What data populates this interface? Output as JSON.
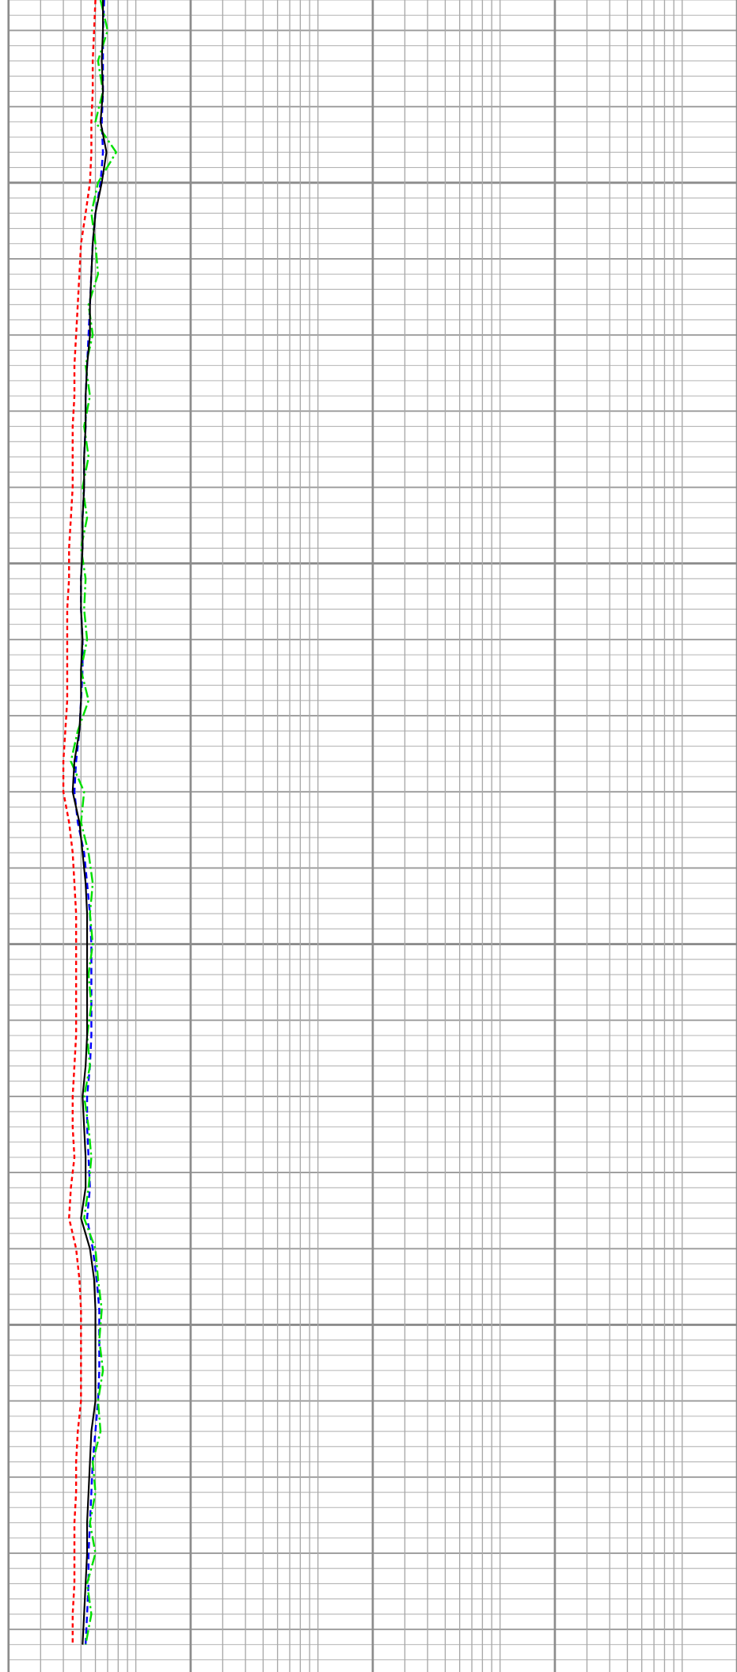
{
  "chart_data": {
    "type": "line",
    "orientation": "vertical",
    "xscale": "log",
    "xlim": [
      0.2,
      2000
    ],
    "xticks": [
      0.2,
      0.3,
      0.4,
      0.5,
      0.6,
      0.7,
      0.8,
      0.9,
      1,
      2,
      3,
      4,
      5,
      6,
      7,
      8,
      9,
      10,
      20,
      30,
      40,
      50,
      60,
      70,
      80,
      90,
      100,
      200,
      300,
      400,
      500,
      600,
      700,
      800,
      900,
      1000,
      2000
    ],
    "ylim": [
      1026,
      1245.6
    ],
    "yticks": [
      1026,
      1028,
      1030,
      1032,
      1034,
      1036,
      1038,
      1040,
      1042,
      1044,
      1046,
      1048,
      1050,
      1052,
      1054,
      1056,
      1058,
      1060,
      1062,
      1064,
      1066,
      1068,
      1070,
      1072,
      1074,
      1076,
      1078,
      1080,
      1082,
      1084,
      1086,
      1088,
      1090,
      1092,
      1094,
      1096,
      1098,
      1100,
      1102,
      1104,
      1106,
      1108,
      1110,
      1112,
      1114,
      1116,
      1118,
      1120,
      1122,
      1124,
      1126,
      1128,
      1130,
      1132,
      1134,
      1136,
      1138,
      1140,
      1142,
      1144,
      1146,
      1148,
      1150,
      1152,
      1154,
      1156,
      1158,
      1160,
      1162,
      1164,
      1166,
      1168,
      1170,
      1172,
      1174,
      1176,
      1178,
      1180,
      1182,
      1184,
      1186,
      1188,
      1190,
      1192,
      1194,
      1196,
      1198,
      1200,
      1202,
      1204,
      1206,
      1208,
      1210,
      1212,
      1214,
      1216,
      1218,
      1220,
      1222,
      1224,
      1226,
      1228,
      1230,
      1232,
      1234,
      1236,
      1238,
      1240,
      1242,
      1244
    ],
    "grid": true,
    "y": [
      1026,
      1030,
      1034,
      1038,
      1042,
      1046,
      1050,
      1054,
      1058,
      1062,
      1066,
      1070,
      1074,
      1078,
      1082,
      1086,
      1090,
      1094,
      1098,
      1102,
      1106,
      1110,
      1114,
      1118,
      1122,
      1126,
      1130,
      1134,
      1138,
      1142,
      1146,
      1150,
      1154,
      1158,
      1162,
      1166,
      1170,
      1174,
      1178,
      1182,
      1186,
      1190,
      1194,
      1198,
      1202,
      1206,
      1210,
      1214,
      1218,
      1222,
      1226,
      1230,
      1234,
      1238,
      1242
    ],
    "series": [
      {
        "color": "#ff0000",
        "dash": "4 3",
        "values": [
          0.6,
          0.59,
          0.58,
          0.58,
          0.57,
          0.57,
          0.56,
          0.53,
          0.5,
          0.49,
          0.48,
          0.47,
          0.46,
          0.46,
          0.45,
          0.45,
          0.45,
          0.44,
          0.43,
          0.43,
          0.42,
          0.42,
          0.42,
          0.42,
          0.41,
          0.4,
          0.4,
          0.43,
          0.45,
          0.46,
          0.47,
          0.47,
          0.47,
          0.47,
          0.47,
          0.46,
          0.45,
          0.45,
          0.46,
          0.44,
          0.43,
          0.47,
          0.49,
          0.5,
          0.5,
          0.5,
          0.5,
          0.48,
          0.47,
          0.47,
          0.46,
          0.46,
          0.46,
          0.45,
          0.45
        ]
      },
      {
        "color": "#0000ff",
        "dash": "6 4",
        "values": [
          0.67,
          0.66,
          0.66,
          0.66,
          0.65,
          0.66,
          0.64,
          0.6,
          0.58,
          0.57,
          0.56,
          0.55,
          0.54,
          0.53,
          0.53,
          0.52,
          0.52,
          0.51,
          0.51,
          0.5,
          0.5,
          0.51,
          0.51,
          0.5,
          0.49,
          0.47,
          0.46,
          0.48,
          0.52,
          0.54,
          0.56,
          0.57,
          0.57,
          0.57,
          0.57,
          0.56,
          0.54,
          0.54,
          0.55,
          0.56,
          0.54,
          0.58,
          0.61,
          0.63,
          0.63,
          0.63,
          0.62,
          0.6,
          0.58,
          0.57,
          0.56,
          0.55,
          0.55,
          0.54,
          0.53
        ]
      },
      {
        "color": "#00e000",
        "dash": "10 3 2 3",
        "values": [
          0.64,
          0.7,
          0.62,
          0.66,
          0.6,
          0.78,
          0.62,
          0.57,
          0.6,
          0.62,
          0.55,
          0.58,
          0.53,
          0.56,
          0.52,
          0.55,
          0.51,
          0.54,
          0.5,
          0.53,
          0.52,
          0.54,
          0.5,
          0.55,
          0.48,
          0.44,
          0.52,
          0.5,
          0.55,
          0.58,
          0.56,
          0.58,
          0.55,
          0.57,
          0.54,
          0.56,
          0.52,
          0.55,
          0.57,
          0.55,
          0.52,
          0.6,
          0.62,
          0.65,
          0.63,
          0.66,
          0.62,
          0.64,
          0.58,
          0.6,
          0.56,
          0.6,
          0.54,
          0.57,
          0.53
        ]
      },
      {
        "color": "#000000",
        "dash": "none",
        "values": [
          0.66,
          0.66,
          0.65,
          0.66,
          0.64,
          0.69,
          0.65,
          0.6,
          0.58,
          0.57,
          0.56,
          0.56,
          0.54,
          0.53,
          0.53,
          0.52,
          0.52,
          0.51,
          0.51,
          0.5,
          0.5,
          0.51,
          0.5,
          0.5,
          0.49,
          0.46,
          0.45,
          0.49,
          0.51,
          0.53,
          0.54,
          0.54,
          0.54,
          0.54,
          0.54,
          0.53,
          0.51,
          0.52,
          0.53,
          0.53,
          0.5,
          0.56,
          0.59,
          0.6,
          0.6,
          0.6,
          0.6,
          0.57,
          0.56,
          0.55,
          0.54,
          0.54,
          0.53,
          0.52,
          0.51
        ]
      }
    ]
  }
}
